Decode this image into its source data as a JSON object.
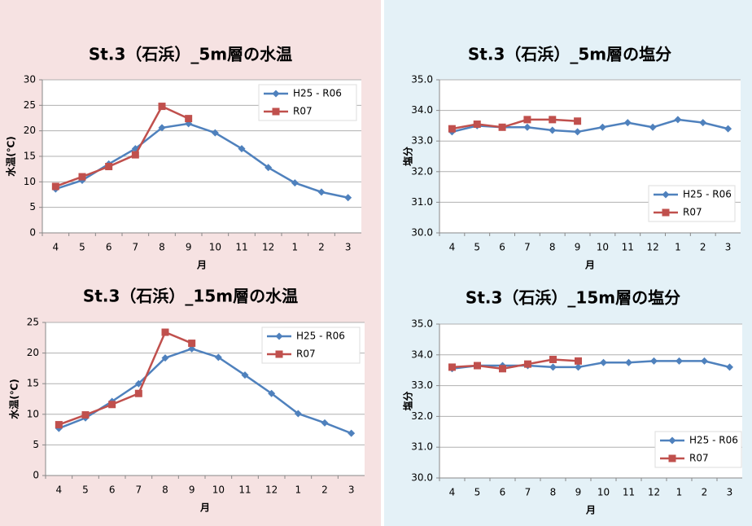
{
  "chart_data": [
    {
      "type": "line",
      "title": "St.3（石浜）_5m層の水温",
      "x_label": "月",
      "y_label": "水温(℃)",
      "categories": [
        "4",
        "5",
        "6",
        "7",
        "8",
        "9",
        "10",
        "11",
        "12",
        "1",
        "2",
        "3"
      ],
      "ylim": [
        0,
        30
      ],
      "yticks": [
        0,
        5,
        10,
        15,
        20,
        25,
        30
      ],
      "grid": true,
      "legend": "upper right",
      "series": [
        {
          "name": "H25 - R06",
          "color": "#4f81bd",
          "marker": "diamond",
          "values": [
            8.6,
            10.3,
            13.5,
            16.5,
            20.6,
            21.4,
            19.6,
            16.5,
            12.8,
            9.8,
            8.0,
            6.9
          ]
        },
        {
          "name": "R07",
          "color": "#c0504d",
          "marker": "square",
          "values": [
            9.1,
            11.0,
            13.0,
            15.3,
            24.8,
            22.4,
            null,
            null,
            null,
            null,
            null,
            null
          ]
        }
      ]
    },
    {
      "type": "line",
      "title": "St.3（石浜）_5m層の塩分",
      "x_label": "月",
      "y_label": "塩分",
      "categories": [
        "4",
        "5",
        "6",
        "7",
        "8",
        "9",
        "10",
        "11",
        "12",
        "1",
        "2",
        "3"
      ],
      "ylim": [
        30,
        35
      ],
      "yticks": [
        {
          "value": 30,
          "label": "30.0"
        },
        {
          "value": 31,
          "label": "31.0"
        },
        {
          "value": 32,
          "label": "32.0"
        },
        {
          "value": 33,
          "label": "33.0"
        },
        {
          "value": 34,
          "label": "34.0"
        },
        {
          "value": 35,
          "label": "35.0"
        }
      ],
      "grid": true,
      "legend": "right",
      "series": [
        {
          "name": "H25 - R06",
          "color": "#4f81bd",
          "marker": "diamond",
          "values": [
            33.3,
            33.5,
            33.45,
            33.45,
            33.35,
            33.3,
            33.45,
            33.6,
            33.45,
            33.7,
            33.6,
            33.4
          ]
        },
        {
          "name": "R07",
          "color": "#c0504d",
          "marker": "square",
          "values": [
            33.4,
            33.55,
            33.45,
            33.7,
            33.7,
            33.65,
            null,
            null,
            null,
            null,
            null,
            null
          ]
        }
      ]
    },
    {
      "type": "line",
      "title": "St.3（石浜）_15m層の水温",
      "x_label": "月",
      "y_label": "水温(℃)",
      "categories": [
        "4",
        "5",
        "6",
        "7",
        "8",
        "9",
        "10",
        "11",
        "12",
        "1",
        "2",
        "3"
      ],
      "ylim": [
        0,
        25
      ],
      "yticks": [
        0,
        5,
        10,
        15,
        20,
        25
      ],
      "grid": true,
      "legend": "upper right",
      "series": [
        {
          "name": "H25 - R06",
          "color": "#4f81bd",
          "marker": "diamond",
          "values": [
            7.7,
            9.4,
            12.1,
            15.0,
            19.2,
            20.7,
            19.3,
            16.4,
            13.4,
            10.1,
            8.6,
            6.9
          ]
        },
        {
          "name": "R07",
          "color": "#c0504d",
          "marker": "square",
          "values": [
            8.3,
            9.9,
            11.6,
            13.4,
            23.4,
            21.6,
            null,
            null,
            null,
            null,
            null,
            null
          ]
        }
      ]
    },
    {
      "type": "line",
      "title": "St.3（石浜）_15m層の塩分",
      "x_label": "月",
      "y_label": "塩分",
      "categories": [
        "4",
        "5",
        "6",
        "7",
        "8",
        "9",
        "10",
        "11",
        "12",
        "1",
        "2",
        "3"
      ],
      "ylim": [
        30,
        35
      ],
      "yticks": [
        {
          "value": 30,
          "label": "30.0"
        },
        {
          "value": 31,
          "label": "31.0"
        },
        {
          "value": 32,
          "label": "32.0"
        },
        {
          "value": 33,
          "label": "33.0"
        },
        {
          "value": 34,
          "label": "34.0"
        },
        {
          "value": 35,
          "label": "35.0"
        }
      ],
      "grid": true,
      "legend": "lower right",
      "series": [
        {
          "name": "H25 - R06",
          "color": "#4f81bd",
          "marker": "diamond",
          "values": [
            33.55,
            33.65,
            33.65,
            33.65,
            33.6,
            33.6,
            33.75,
            33.75,
            33.8,
            33.8,
            33.8,
            33.6
          ]
        },
        {
          "name": "R07",
          "color": "#c0504d",
          "marker": "square",
          "values": [
            33.6,
            33.65,
            33.55,
            33.7,
            33.85,
            33.8,
            null,
            null,
            null,
            null,
            null,
            null
          ]
        }
      ]
    }
  ]
}
